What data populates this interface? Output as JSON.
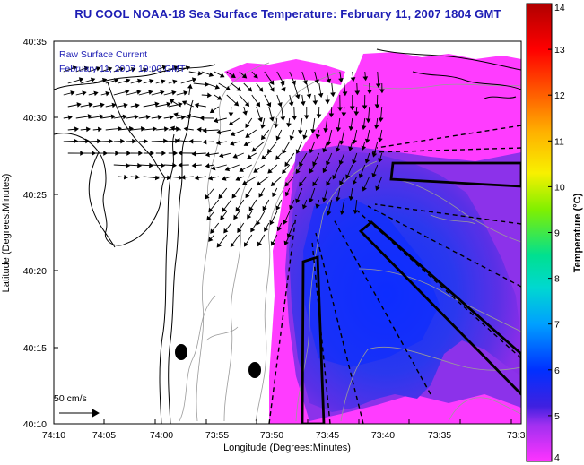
{
  "title": "RU COOL  NOAA-18  Sea Surface Temperature:  February 11, 2007 1804 GMT",
  "legend": {
    "line1": "Raw Surface Current",
    "line2": "February 11, 2007 19:00 GMT",
    "scale_label": "50 cm/s"
  },
  "axes": {
    "xlabel": "Longitude (Degrees:Minutes)",
    "ylabel": "Latitude (Degrees:Minutes)",
    "x_ticks": [
      "74:10",
      "74:05",
      "74:00",
      "73:55",
      "73:50",
      "73:45",
      "73:40",
      "73:35",
      "73:3"
    ],
    "y_ticks": [
      "40:35",
      "40:30",
      "40:25",
      "40:20",
      "40:15",
      "40:10"
    ]
  },
  "colorbar": {
    "title": "Temperature (°C)",
    "min": 4,
    "max": 14,
    "labels": [
      "14",
      "13",
      "12",
      "11",
      "10",
      "9",
      "8",
      "7",
      "6",
      "5",
      "4"
    ]
  },
  "colors": {
    "title": "#1c1cb4",
    "warm_water": "#ff3cff",
    "cool_water": "#2020e6"
  }
}
